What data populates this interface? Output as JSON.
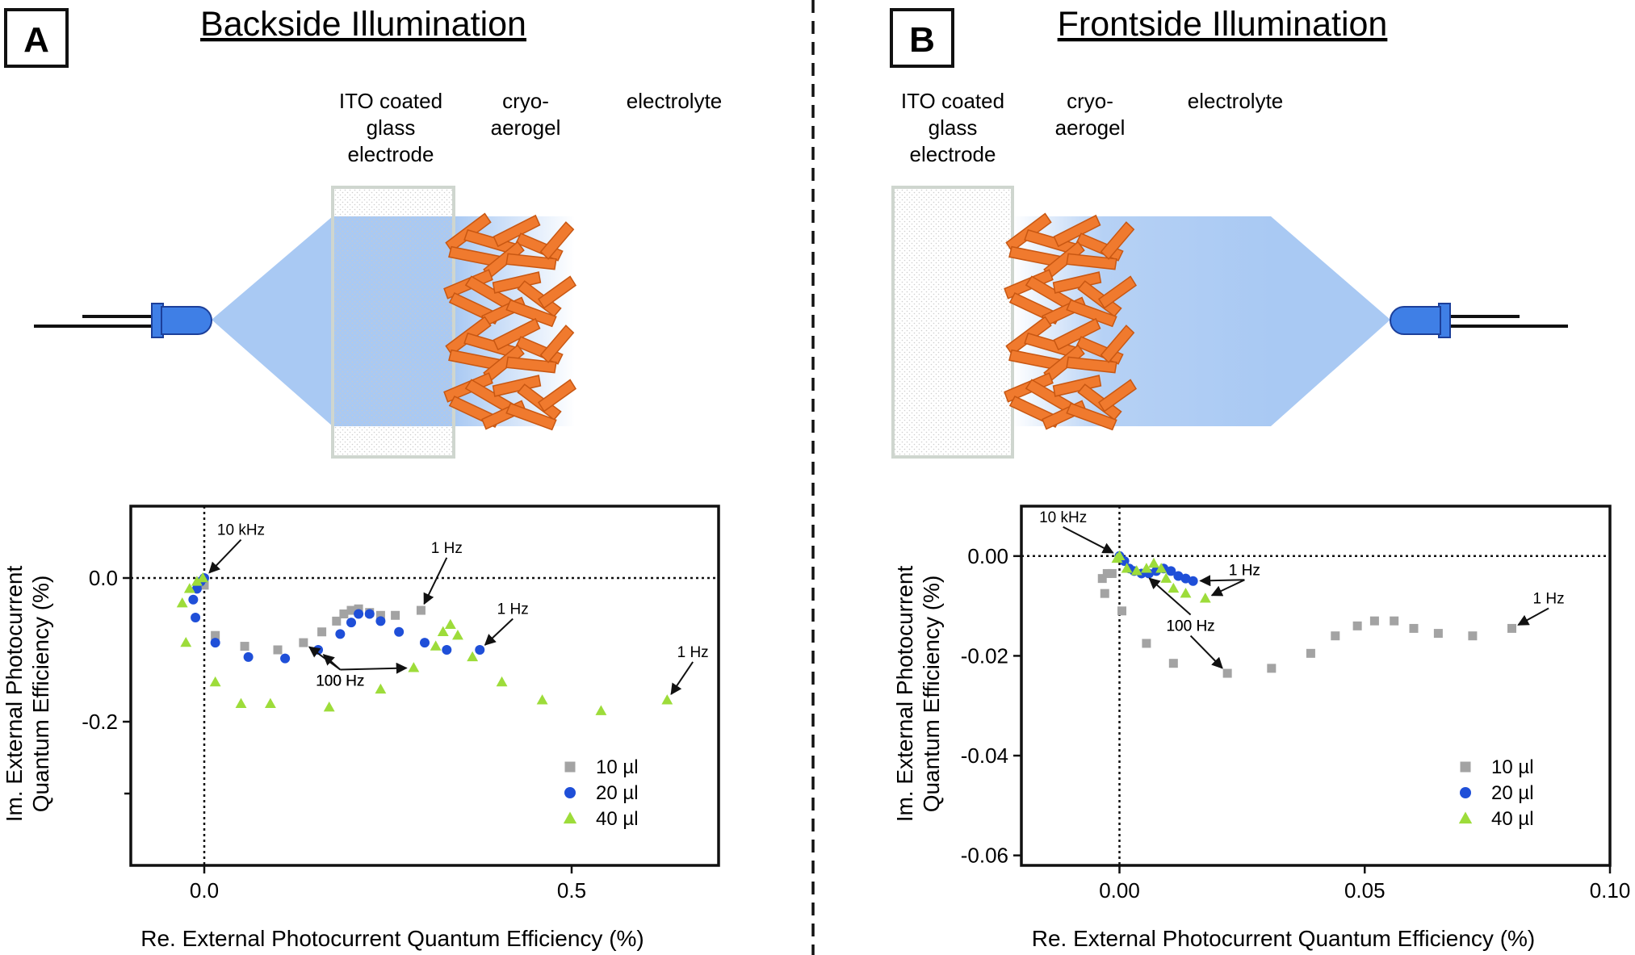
{
  "panels": [
    {
      "letter": "A",
      "title": "Backside Illumination",
      "labels": {
        "ito": [
          "ITO coated",
          "glass",
          "electrode"
        ],
        "aerogel": [
          "cryo-",
          "aerogel"
        ],
        "electrolyte": [
          "electrolyte"
        ]
      }
    },
    {
      "letter": "B",
      "title": "Frontside Illumination",
      "labels": {
        "ito": [
          "ITO coated",
          "glass",
          "electrode"
        ],
        "aerogel": [
          "cryo-",
          "aerogel"
        ],
        "electrolyte": [
          "electrolyte"
        ]
      }
    }
  ],
  "colors": {
    "light_blue": "#a9c9f3",
    "led_blue": "#3f7fe6",
    "aerogel_orange": "#f07a2e",
    "s10": "#a3a3a3",
    "s20": "#1f4fd8",
    "s40": "#9ddc3a"
  },
  "chart_data": [
    {
      "type": "scatter",
      "xlabel": "Re. External Photocurrent Quantum Efficiency (%)",
      "ylabel": [
        "Im. External Photocurrent",
        "Quantum Efficiency (%)"
      ],
      "xlim": [
        -0.1,
        0.7
      ],
      "ylim": [
        -0.4,
        0.1
      ],
      "xticks": [
        0.0,
        0.5
      ],
      "xtick_labels": [
        "0.0",
        "0.5"
      ],
      "yticks": [
        0.0,
        -0.2
      ],
      "ytick_labels": [
        "0.0",
        "-0.2"
      ],
      "minor_yticks": [
        -0.3
      ],
      "legend_position": "bottom-right",
      "series": [
        {
          "name": "10 µl",
          "marker": "square",
          "color_key": "s10",
          "points": [
            [
              0.0,
              -0.01
            ],
            [
              0.015,
              -0.08
            ],
            [
              0.055,
              -0.095
            ],
            [
              0.1,
              -0.1
            ],
            [
              0.135,
              -0.09
            ],
            [
              0.16,
              -0.075
            ],
            [
              0.18,
              -0.06
            ],
            [
              0.19,
              -0.05
            ],
            [
              0.2,
              -0.045
            ],
            [
              0.21,
              -0.043
            ],
            [
              0.225,
              -0.048
            ],
            [
              0.24,
              -0.052
            ],
            [
              0.26,
              -0.052
            ],
            [
              0.295,
              -0.045
            ]
          ]
        },
        {
          "name": "20 µl",
          "marker": "circle",
          "color_key": "s20",
          "points": [
            [
              -0.012,
              -0.055
            ],
            [
              -0.015,
              -0.03
            ],
            [
              -0.01,
              -0.015
            ],
            [
              -0.005,
              -0.005
            ],
            [
              0.0,
              0.0
            ],
            [
              0.015,
              -0.09
            ],
            [
              0.06,
              -0.11
            ],
            [
              0.11,
              -0.112
            ],
            [
              0.155,
              -0.1
            ],
            [
              0.185,
              -0.078
            ],
            [
              0.2,
              -0.062
            ],
            [
              0.21,
              -0.05
            ],
            [
              0.225,
              -0.05
            ],
            [
              0.24,
              -0.06
            ],
            [
              0.265,
              -0.075
            ],
            [
              0.3,
              -0.09
            ],
            [
              0.33,
              -0.1
            ],
            [
              0.375,
              -0.1
            ]
          ]
        },
        {
          "name": "40 µl",
          "marker": "triangle",
          "color_key": "s40",
          "points": [
            [
              -0.03,
              -0.035
            ],
            [
              -0.025,
              -0.09
            ],
            [
              -0.02,
              -0.015
            ],
            [
              -0.01,
              -0.005
            ],
            [
              -0.002,
              0.0
            ],
            [
              0.015,
              -0.145
            ],
            [
              0.05,
              -0.175
            ],
            [
              0.09,
              -0.175
            ],
            [
              0.17,
              -0.18
            ],
            [
              0.24,
              -0.155
            ],
            [
              0.285,
              -0.125
            ],
            [
              0.315,
              -0.095
            ],
            [
              0.325,
              -0.075
            ],
            [
              0.335,
              -0.065
            ],
            [
              0.345,
              -0.08
            ],
            [
              0.365,
              -0.11
            ],
            [
              0.405,
              -0.145
            ],
            [
              0.46,
              -0.17
            ],
            [
              0.54,
              -0.185
            ],
            [
              0.63,
              -0.17
            ]
          ]
        }
      ],
      "annotations": [
        {
          "text": "10 kHz",
          "at": [
            0.0,
            0.0
          ],
          "text_pos": [
            0.05,
            0.06
          ]
        },
        {
          "text": "1 Hz",
          "at": [
            0.295,
            -0.045
          ],
          "text_pos": [
            0.33,
            0.035
          ]
        },
        {
          "text": "1 Hz",
          "at": [
            0.375,
            -0.1
          ],
          "text_pos": [
            0.42,
            -0.05
          ]
        },
        {
          "text": "1 Hz",
          "at": [
            0.63,
            -0.17
          ],
          "text_pos": [
            0.665,
            -0.11
          ]
        },
        {
          "text": "100 Hz",
          "at": [
            0.155,
            -0.1
          ],
          "text_pos": [
            0.185,
            -0.15
          ]
        },
        {
          "text": "100 Hz",
          "at": [
            0.285,
            -0.125
          ],
          "text_pos": [
            0.185,
            -0.15
          ]
        },
        {
          "text": "100 Hz",
          "at": [
            0.135,
            -0.09
          ],
          "text_pos": [
            0.185,
            -0.15
          ]
        }
      ]
    },
    {
      "type": "scatter",
      "xlabel": "Re. External Photocurrent Quantum Efficiency (%)",
      "ylabel": [
        "Im. External Photocurrent",
        "Quantum Efficiency (%)"
      ],
      "xlim": [
        -0.02,
        0.1
      ],
      "ylim": [
        -0.062,
        0.01
      ],
      "xticks": [
        0.0,
        0.05,
        0.1
      ],
      "xtick_labels": [
        "0.00",
        "0.05",
        "0.10"
      ],
      "yticks": [
        0.0,
        -0.02,
        -0.04,
        -0.06
      ],
      "ytick_labels": [
        "0.00",
        "-0.02",
        "-0.04",
        "-0.06"
      ],
      "minor_yticks": [],
      "legend_position": "bottom-right",
      "series": [
        {
          "name": "10 µl",
          "marker": "square",
          "color_key": "s10",
          "points": [
            [
              -0.0035,
              -0.0045
            ],
            [
              -0.0025,
              -0.0035
            ],
            [
              -0.0015,
              -0.0035
            ],
            [
              -0.003,
              -0.0075
            ],
            [
              0.0005,
              -0.011
            ],
            [
              0.0055,
              -0.0175
            ],
            [
              0.011,
              -0.0215
            ],
            [
              0.022,
              -0.0235
            ],
            [
              0.031,
              -0.0225
            ],
            [
              0.039,
              -0.0195
            ],
            [
              0.044,
              -0.016
            ],
            [
              0.0485,
              -0.014
            ],
            [
              0.052,
              -0.013
            ],
            [
              0.056,
              -0.013
            ],
            [
              0.06,
              -0.0145
            ],
            [
              0.065,
              -0.0155
            ],
            [
              0.072,
              -0.016
            ],
            [
              0.08,
              -0.0145
            ]
          ]
        },
        {
          "name": "20 µl",
          "marker": "circle",
          "color_key": "s20",
          "points": [
            [
              0.0,
              0.0
            ],
            [
              0.001,
              -0.001
            ],
            [
              0.002,
              -0.0025
            ],
            [
              0.003,
              -0.003
            ],
            [
              0.0045,
              -0.0035
            ],
            [
              0.006,
              -0.0035
            ],
            [
              0.0075,
              -0.003
            ],
            [
              0.009,
              -0.0025
            ],
            [
              0.0105,
              -0.003
            ],
            [
              0.012,
              -0.004
            ],
            [
              0.0135,
              -0.0045
            ],
            [
              0.015,
              -0.005
            ]
          ]
        },
        {
          "name": "40 µl",
          "marker": "triangle",
          "color_key": "s40",
          "points": [
            [
              -0.0005,
              -0.0005
            ],
            [
              0.0,
              0.0
            ],
            [
              0.0015,
              -0.0025
            ],
            [
              0.0035,
              -0.003
            ],
            [
              0.0055,
              -0.0025
            ],
            [
              0.007,
              -0.0015
            ],
            [
              0.0085,
              -0.0025
            ],
            [
              0.0095,
              -0.0045
            ],
            [
              0.011,
              -0.0065
            ],
            [
              0.0135,
              -0.0075
            ],
            [
              0.0175,
              -0.0085
            ]
          ]
        }
      ],
      "annotations": [
        {
          "text": "10 kHz",
          "at": [
            0.0,
            0.0
          ],
          "text_pos": [
            -0.0115,
            0.0068
          ]
        },
        {
          "text": "1 Hz",
          "at": [
            0.015,
            -0.005
          ],
          "text_pos": [
            0.0255,
            -0.0038
          ]
        },
        {
          "text": "1 Hz",
          "at": [
            0.0175,
            -0.0085
          ],
          "text_pos": [
            0.0255,
            -0.0038
          ]
        },
        {
          "text": "1 Hz",
          "at": [
            0.08,
            -0.0145
          ],
          "text_pos": [
            0.0875,
            -0.0095
          ]
        },
        {
          "text": "100 Hz",
          "at": [
            0.005,
            -0.0035
          ],
          "text_pos": [
            0.0145,
            -0.015
          ]
        },
        {
          "text": "100 Hz",
          "at": [
            0.022,
            -0.0235
          ],
          "text_pos": [
            0.0145,
            -0.015
          ]
        }
      ]
    }
  ]
}
